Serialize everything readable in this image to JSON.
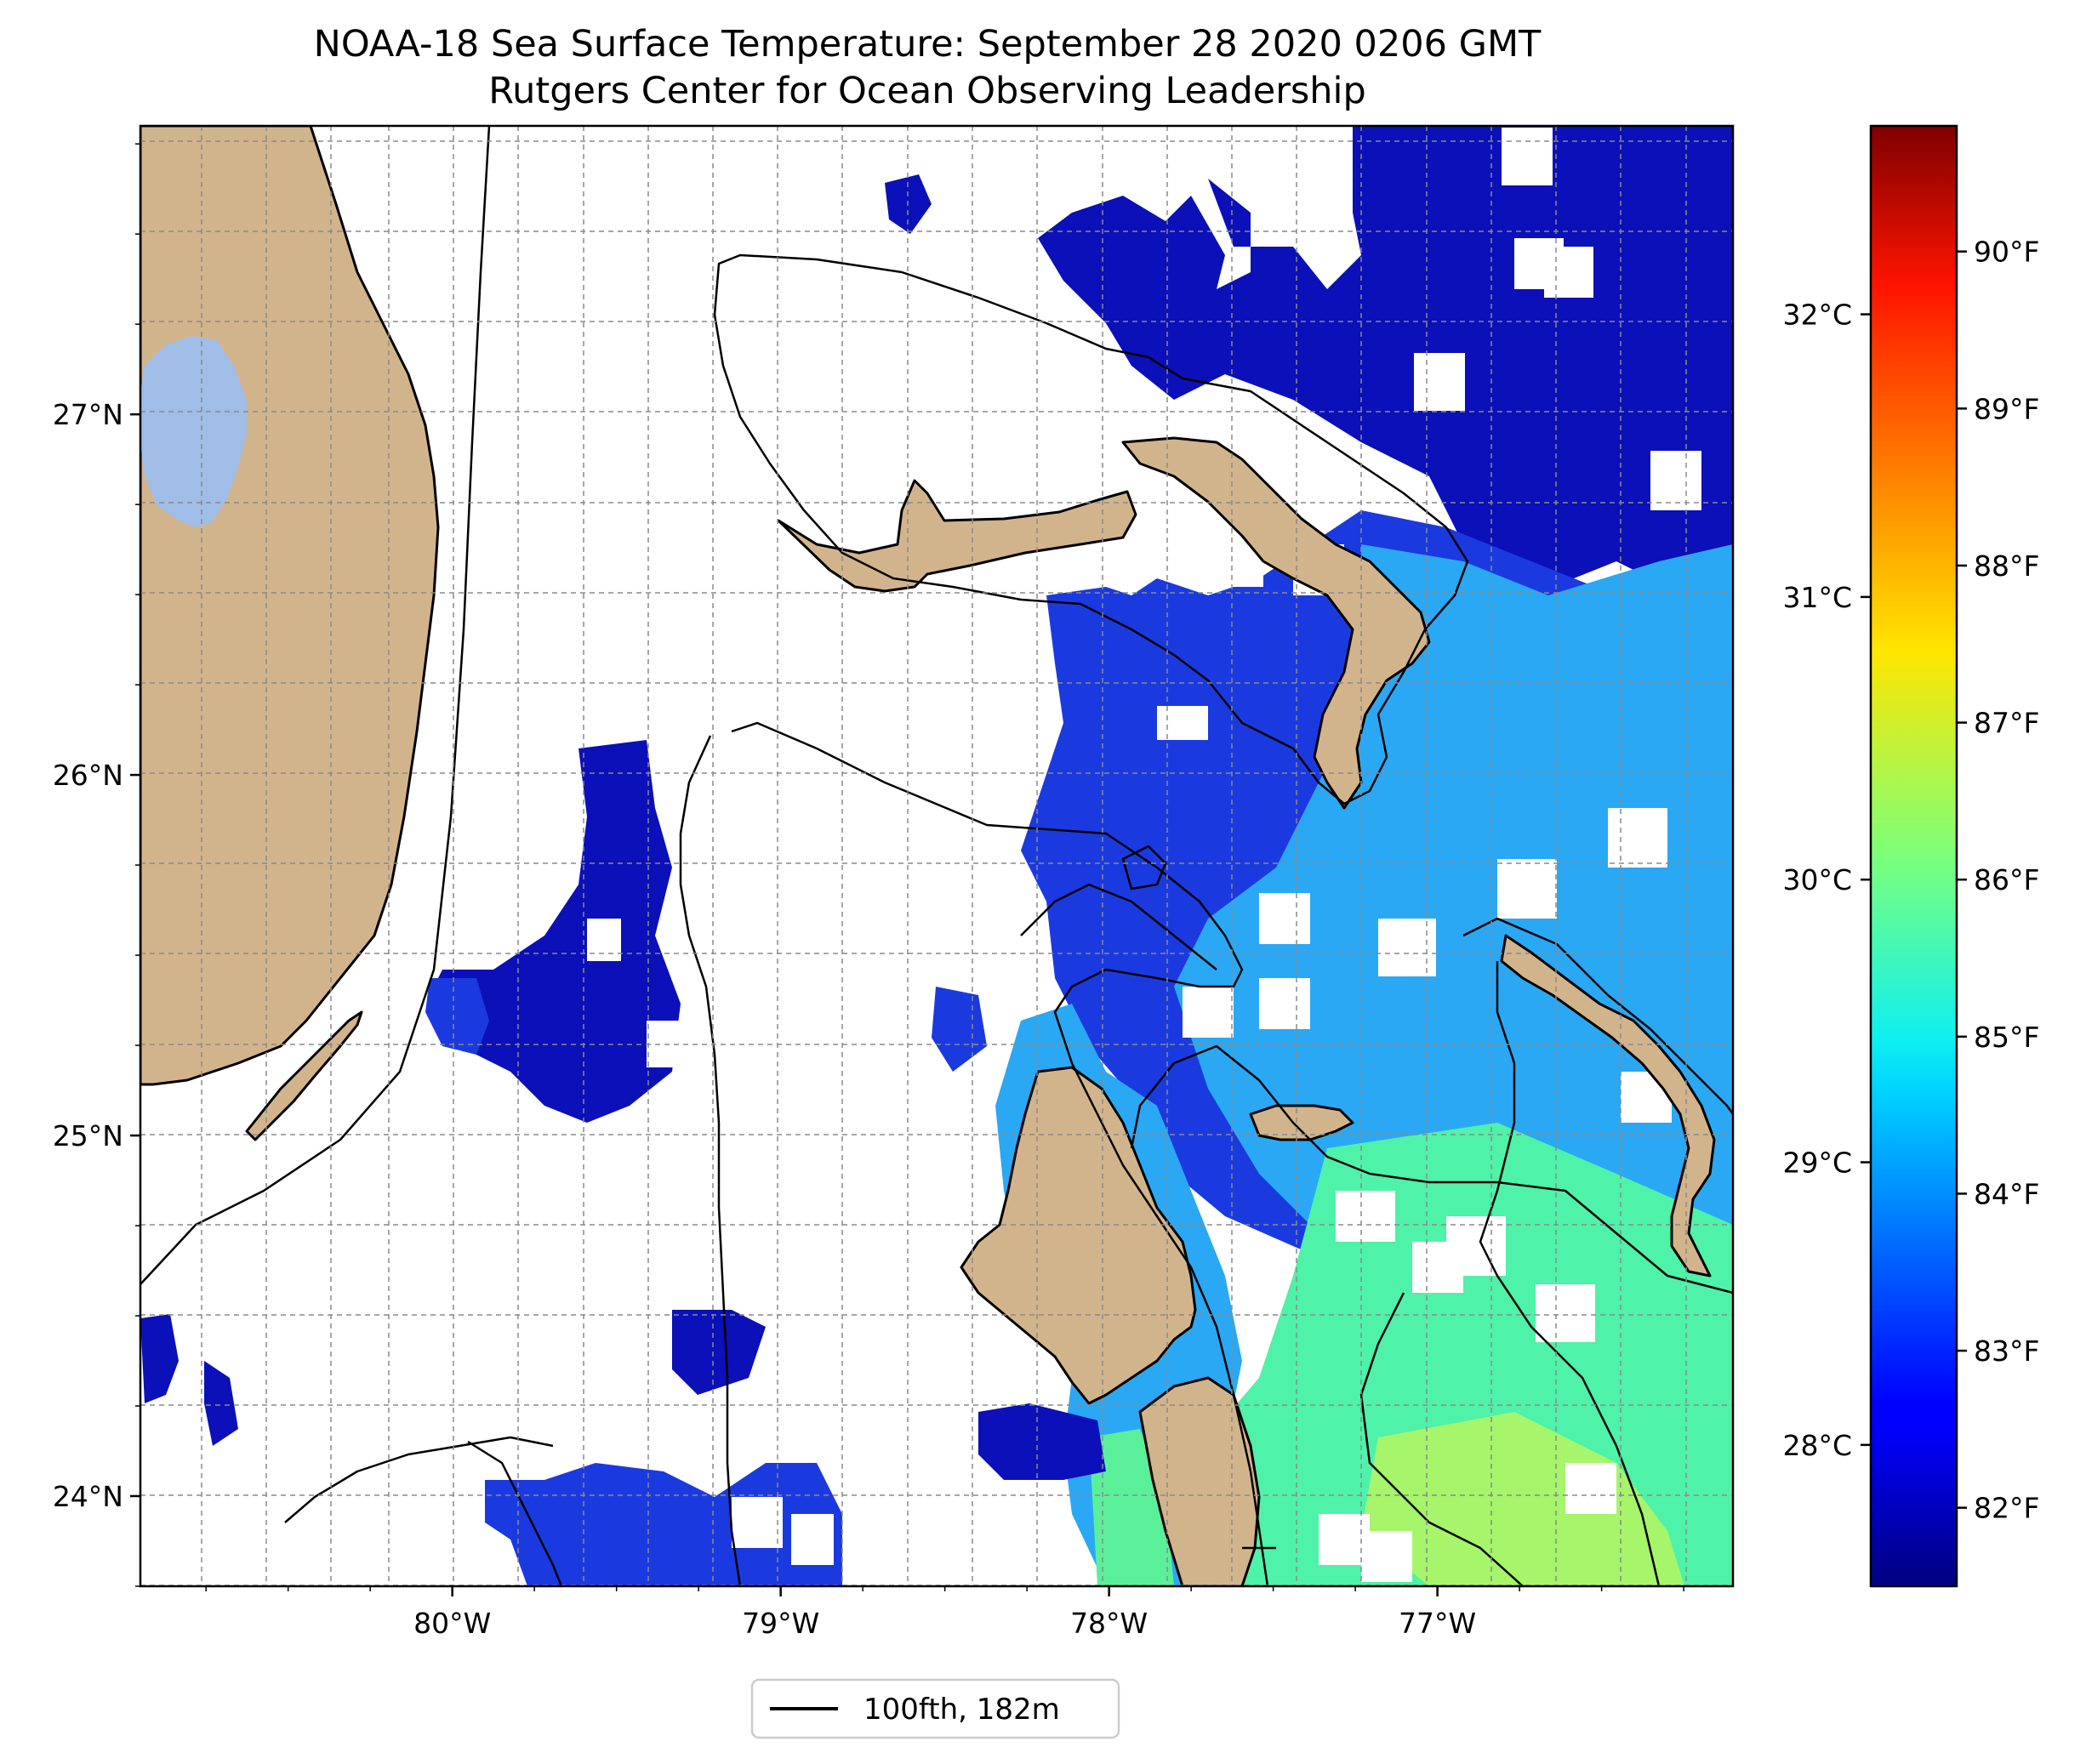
{
  "title": {
    "line1": "NOAA-18 Sea Surface Temperature: September 28 2020 0206 GMT",
    "line2": "Rutgers Center for Ocean Observing Leadership"
  },
  "map": {
    "lon_range": [
      -80.95,
      -76.1
    ],
    "lat_range": [
      23.75,
      27.8
    ],
    "land_color": "#d2b48c",
    "lake_color": "#9fbde6",
    "longitude_ticks": [
      {
        "value": -80,
        "label": "80°W"
      },
      {
        "value": -79,
        "label": "79°W"
      },
      {
        "value": -78,
        "label": "78°W"
      },
      {
        "value": -77,
        "label": "77°W"
      }
    ],
    "latitude_ticks": [
      {
        "value": 27,
        "label": "27°N"
      },
      {
        "value": 26,
        "label": "26°N"
      },
      {
        "value": 25,
        "label": "25°N"
      },
      {
        "value": 24,
        "label": "24°N"
      }
    ],
    "grid": "dashed"
  },
  "colorbar": {
    "colormap": "jet",
    "celsius_ticks": [
      {
        "value": 28,
        "label": "28°C"
      },
      {
        "value": 29,
        "label": "29°C"
      },
      {
        "value": 30,
        "label": "30°C"
      },
      {
        "value": 31,
        "label": "31°C"
      },
      {
        "value": 32,
        "label": "32°C"
      }
    ],
    "fahrenheit_ticks": [
      {
        "value": 82,
        "label": "82°F"
      },
      {
        "value": 83,
        "label": "83°F"
      },
      {
        "value": 84,
        "label": "84°F"
      },
      {
        "value": 85,
        "label": "85°F"
      },
      {
        "value": 86,
        "label": "86°F"
      },
      {
        "value": 87,
        "label": "87°F"
      },
      {
        "value": 88,
        "label": "88°F"
      },
      {
        "value": 89,
        "label": "89°F"
      },
      {
        "value": 90,
        "label": "90°F"
      }
    ],
    "fahrenheit_range": [
      81.5,
      90.8
    ]
  },
  "legend": {
    "entries": [
      {
        "label": "100fth, 182m",
        "color": "#000000"
      }
    ]
  }
}
